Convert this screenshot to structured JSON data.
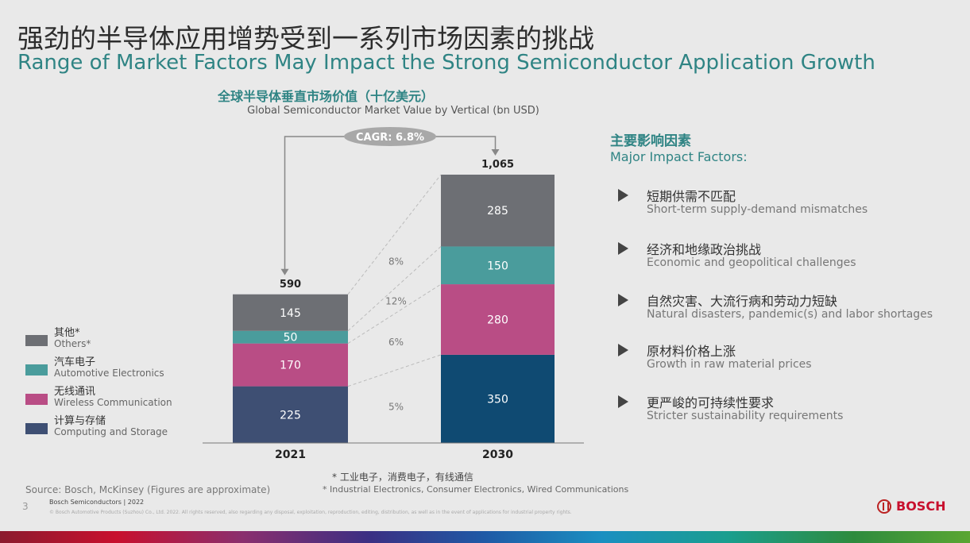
{
  "slide": {
    "title_cn": "强劲的半导体应用增势受到一系列市场因素的挑战",
    "title_en": "Range of Market Factors May Impact the Strong Semiconductor Application Growth",
    "page_number": "3"
  },
  "chart_data": {
    "type": "bar",
    "stacked": true,
    "title": "全球半导体垂直市场价值（十亿美元）",
    "subtitle": "Global Semiconductor Market Value by Vertical (bn USD)",
    "categories": [
      "2021",
      "2030"
    ],
    "totals": [
      "590",
      "1,065"
    ],
    "cagr_label": "CAGR: 6.8%",
    "series": [
      {
        "name": "计算与存储",
        "name_en": "Computing and Storage",
        "color": "#3e4f73",
        "values": [
          225,
          350
        ],
        "growth": "5%"
      },
      {
        "name": "无线通讯",
        "name_en": "Wireless Communication",
        "color": "#b94d85",
        "values": [
          170,
          280
        ],
        "growth": "6%"
      },
      {
        "name": "汽车电子",
        "name_en": "Automotive Electronics",
        "color": "#4a9c9c",
        "values": [
          50,
          150
        ],
        "growth": "12%"
      },
      {
        "name": "其他*",
        "name_en": "Others*",
        "color": "#6d6f74",
        "values": [
          145,
          285
        ],
        "growth": "8%"
      }
    ],
    "value_colors": [
      "#3e4f73",
      "#0f4a72"
    ]
  },
  "factors": {
    "heading_cn": "主要影响因素",
    "heading_en": "Major Impact Factors:",
    "items": [
      {
        "cn": "短期供需不匹配",
        "en": "Short-term supply-demand mismatches"
      },
      {
        "cn": "经济和地缘政治挑战",
        "en": "Economic and geopolitical challenges"
      },
      {
        "cn": "自然灾害、大流行病和劳动力短缺",
        "en": "Natural disasters, pandemic(s) and labor shortages"
      },
      {
        "cn": "原材料价格上涨",
        "en": "Growth in raw material prices"
      },
      {
        "cn": "更严峻的可持续性要求",
        "en": "Stricter sustainability requirements"
      }
    ]
  },
  "footer": {
    "source": "Source: Bosch, McKinsey (Figures are approximate)",
    "footnote_cn": "* 工业电子，消费电子，有线通信",
    "footnote_en": "* Industrial Electronics, Consumer Electronics, Wired Communications",
    "org": "Bosch Semiconductors | 2022",
    "copyright": "© Bosch Automotive Products (Suzhou) Co., Ltd. 2022. All rights reserved, also regarding any disposal, exploitation, reproduction, editing, distribution, as well as in the event of applications for industrial property rights.",
    "brand": "BOSCH"
  }
}
